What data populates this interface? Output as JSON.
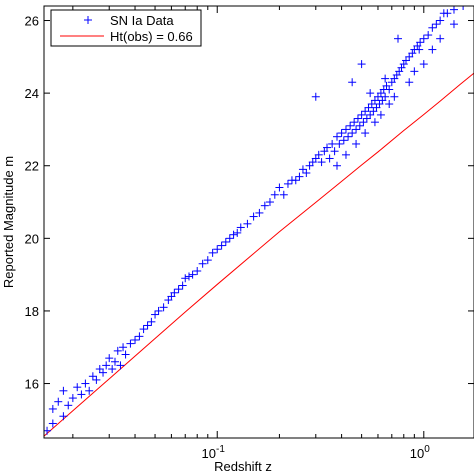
{
  "chart_data": {
    "type": "scatter",
    "title": "",
    "xlabel": "Redshift  z",
    "ylabel": "Reported  Magnitude  m",
    "xscale": "log",
    "xlim": [
      0.0145,
      1.75
    ],
    "ylim": [
      14.5,
      26.4
    ],
    "x_ticks": [
      0.1,
      1
    ],
    "x_tick_labels": [
      {
        "base": "10",
        "exp": "-1"
      },
      {
        "base": "10",
        "exp": "0"
      }
    ],
    "y_ticks": [
      16,
      18,
      20,
      22,
      24,
      26
    ],
    "y_tick_labels": [
      "16",
      "18",
      "20",
      "22",
      "24",
      "26"
    ],
    "grid": false,
    "legend_position": "top-left",
    "colors": {
      "data": "#0000ff",
      "fit": "#ff0000",
      "axes": "#000000"
    },
    "series": [
      {
        "name": "SN Ia  Data",
        "kind": "scatter",
        "marker": "+",
        "x": [
          0.015,
          0.016,
          0.016,
          0.017,
          0.018,
          0.018,
          0.019,
          0.02,
          0.021,
          0.022,
          0.023,
          0.024,
          0.025,
          0.026,
          0.027,
          0.028,
          0.029,
          0.03,
          0.031,
          0.032,
          0.033,
          0.034,
          0.035,
          0.036,
          0.038,
          0.04,
          0.042,
          0.044,
          0.046,
          0.048,
          0.05,
          0.052,
          0.055,
          0.058,
          0.06,
          0.062,
          0.065,
          0.068,
          0.07,
          0.073,
          0.076,
          0.08,
          0.085,
          0.09,
          0.095,
          0.1,
          0.105,
          0.11,
          0.115,
          0.12,
          0.125,
          0.13,
          0.14,
          0.15,
          0.16,
          0.17,
          0.18,
          0.19,
          0.2,
          0.21,
          0.22,
          0.23,
          0.24,
          0.25,
          0.26,
          0.27,
          0.28,
          0.29,
          0.3,
          0.31,
          0.32,
          0.33,
          0.34,
          0.35,
          0.36,
          0.37,
          0.38,
          0.39,
          0.4,
          0.41,
          0.42,
          0.43,
          0.44,
          0.45,
          0.46,
          0.47,
          0.48,
          0.49,
          0.5,
          0.51,
          0.52,
          0.53,
          0.54,
          0.55,
          0.56,
          0.57,
          0.58,
          0.59,
          0.6,
          0.61,
          0.62,
          0.63,
          0.64,
          0.65,
          0.66,
          0.68,
          0.7,
          0.72,
          0.74,
          0.76,
          0.78,
          0.8,
          0.82,
          0.85,
          0.88,
          0.9,
          0.93,
          0.96,
          1.0,
          1.05,
          1.1,
          1.15,
          1.2,
          1.3,
          1.4,
          1.55,
          0.3,
          0.45,
          0.5,
          0.65,
          0.75,
          0.55,
          0.95,
          1.25,
          1.4,
          0.38,
          0.42,
          0.47,
          0.52,
          0.58,
          0.62,
          0.68,
          0.72,
          0.85,
          0.9,
          1.0,
          1.1,
          1.2
        ],
        "y": [
          14.7,
          15.3,
          14.9,
          15.5,
          15.1,
          15.8,
          15.4,
          15.6,
          15.9,
          15.7,
          16.0,
          15.8,
          16.2,
          16.1,
          16.4,
          16.3,
          16.5,
          16.7,
          16.4,
          16.6,
          16.9,
          16.5,
          17.0,
          16.8,
          17.1,
          17.2,
          17.3,
          17.5,
          17.6,
          17.7,
          17.9,
          18.0,
          18.1,
          18.3,
          18.4,
          18.5,
          18.6,
          18.7,
          18.9,
          18.95,
          19.0,
          19.1,
          19.3,
          19.4,
          19.6,
          19.7,
          19.8,
          19.9,
          20.0,
          20.1,
          20.15,
          20.3,
          20.4,
          20.6,
          20.7,
          20.9,
          21.0,
          21.2,
          21.4,
          21.2,
          21.5,
          21.6,
          21.6,
          21.7,
          21.9,
          21.8,
          22.0,
          22.1,
          22.2,
          22.3,
          22.1,
          22.4,
          22.5,
          22.2,
          22.6,
          22.4,
          22.8,
          22.6,
          22.9,
          22.7,
          23.0,
          22.8,
          23.1,
          22.9,
          23.2,
          23.0,
          23.3,
          23.1,
          23.4,
          23.2,
          23.5,
          23.3,
          23.6,
          23.4,
          23.7,
          23.5,
          23.8,
          23.6,
          23.9,
          23.7,
          24.0,
          23.8,
          24.1,
          23.9,
          24.2,
          24.1,
          24.3,
          24.4,
          24.5,
          24.6,
          24.7,
          24.8,
          24.9,
          25.0,
          25.1,
          25.2,
          25.3,
          25.4,
          25.5,
          25.6,
          25.8,
          25.9,
          26.0,
          26.2,
          26.3,
          26.4,
          23.9,
          24.3,
          24.8,
          24.4,
          25.5,
          24.0,
          25.2,
          26.2,
          25.9,
          22.0,
          22.3,
          22.6,
          22.9,
          23.2,
          23.4,
          23.7,
          23.9,
          24.3,
          24.6,
          24.8,
          25.2,
          25.5
        ]
      },
      {
        "name": "Ht(obs) = 0.66",
        "kind": "line",
        "x": [
          0.0145,
          0.02,
          0.03,
          0.05,
          0.07,
          0.1,
          0.15,
          0.2,
          0.3,
          0.4,
          0.5,
          0.6,
          0.8,
          1.0,
          1.2,
          1.5,
          1.75
        ],
        "y": [
          14.55,
          15.25,
          16.13,
          17.24,
          17.97,
          18.73,
          19.58,
          20.18,
          20.99,
          21.57,
          22.02,
          22.38,
          22.97,
          23.41,
          23.78,
          24.24,
          24.55
        ]
      }
    ]
  }
}
